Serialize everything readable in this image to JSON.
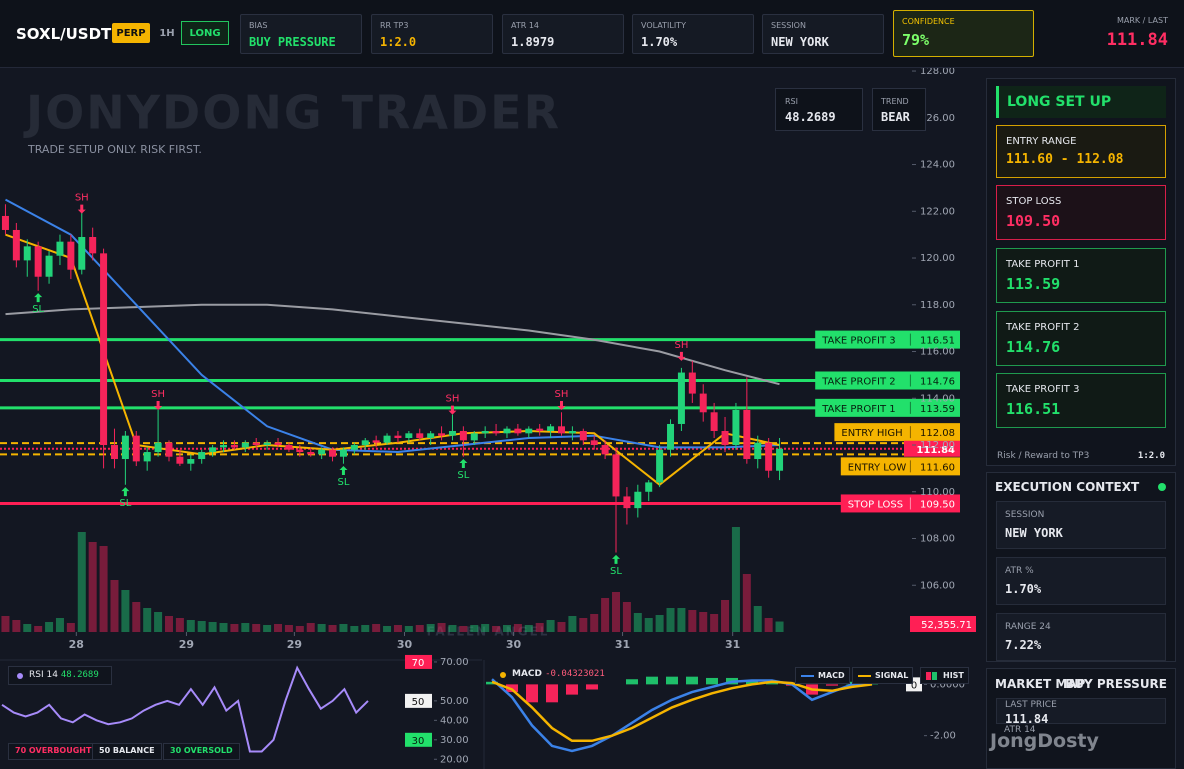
{
  "header": {
    "symbol": "SOXL/USDT",
    "badges": [
      "PERP",
      "1H",
      "LONG"
    ],
    "cards": [
      {
        "label": "BIAS",
        "value": "BUY PRESSURE"
      },
      {
        "label": "RR TP3",
        "value": "1:2.0"
      },
      {
        "label": "ATR 14",
        "value": "1.8979"
      },
      {
        "label": "VOLATILITY",
        "value": "1.70%"
      },
      {
        "label": "SESSION",
        "value": "NEW YORK"
      },
      {
        "label": "CONFIDENCE",
        "value": "79%"
      }
    ],
    "mark": {
      "label": "MARK / LAST",
      "value": "111.84"
    }
  },
  "indicators": [
    {
      "label": "RSI",
      "value": "48.2689"
    },
    {
      "label": "TREND",
      "value": "BEAR"
    }
  ],
  "setup": {
    "title": "LONG SET UP",
    "cards": [
      {
        "label": "ENTRY RANGE",
        "value": "111.60 - 112.08"
      },
      {
        "label": "STOP LOSS",
        "value": "109.50"
      },
      {
        "label": "TAKE PROFIT 1",
        "value": "113.59"
      },
      {
        "label": "TAKE PROFIT 2",
        "value": "114.76"
      },
      {
        "label": "TAKE PROFIT 3",
        "value": "116.51"
      }
    ],
    "footer": {
      "label": "Risk / Reward to TP3",
      "value": "1:2.0"
    }
  },
  "context": {
    "title": "EXECUTION CONTEXT",
    "cards": [
      {
        "label": "SESSION",
        "value": "NEW YORK"
      },
      {
        "label": "ATR %",
        "value": "1.70%"
      },
      {
        "label": "RANGE 24",
        "value": "7.22%"
      }
    ]
  },
  "market_map": {
    "title": "MARKET MAP",
    "value": "BUY PRESSURE",
    "cards": [
      {
        "label": "LAST PRICE",
        "value": "111.84"
      },
      {
        "label": "ATR 14"
      }
    ]
  },
  "watermark": "JongDosty",
  "chart_data": [
    {
      "type": "candlestick",
      "watermark": "JONYDONG TRADER",
      "subtitle": "TRADE SETUP ONLY. RISK FIRST.",
      "footer_watermark": "FALLEN ANGEL",
      "ylim": [
        104,
        128.13
      ],
      "yticks": [
        {
          "value": 128,
          "label": "128.00"
        },
        {
          "value": 126,
          "label": "126.00"
        },
        {
          "value": 124,
          "label": "124.00"
        },
        {
          "value": 122,
          "label": "122.00"
        },
        {
          "value": 120,
          "label": "120.00"
        },
        {
          "value": 118,
          "label": "118.00"
        },
        {
          "value": 116,
          "label": "116.00"
        },
        {
          "value": 114,
          "label": "114.00"
        },
        {
          "value": 112,
          "label": "112.00"
        },
        {
          "value": 110,
          "label": "110.00"
        },
        {
          "value": 108,
          "label": "108.00"
        },
        {
          "value": 106,
          "label": "106.00"
        }
      ],
      "xlim": [
        -0.5,
        71.5
      ],
      "xticks": [
        {
          "value": 6.5,
          "label": "28"
        },
        {
          "value": 16.6,
          "label": "29"
        },
        {
          "value": 26.5,
          "label": "29"
        },
        {
          "value": 36.6,
          "label": "30"
        },
        {
          "value": 46.6,
          "label": "30"
        },
        {
          "value": 56.6,
          "label": "31"
        },
        {
          "value": 66.7,
          "label": "31"
        }
      ],
      "up_color": "#22d37a",
      "down_color": "#f5245a",
      "open": [
        121.8,
        121.2,
        119.9,
        120.5,
        119.2,
        120.1,
        120.7,
        119.5,
        120.9,
        120.2,
        112.0,
        111.4,
        112.4,
        111.3,
        111.7,
        112.1,
        111.5,
        111.2,
        111.4,
        111.7,
        111.9,
        112.0,
        111.9,
        112.1,
        112.0,
        112.1,
        112.0,
        111.8,
        111.7,
        111.6,
        111.8,
        111.5,
        111.8,
        112.0,
        112.2,
        112.1,
        112.4,
        112.3,
        112.5,
        112.3,
        112.5,
        112.4,
        112.6,
        112.2,
        112.5,
        112.6,
        112.5,
        112.7,
        112.5,
        112.7,
        112.6,
        112.8,
        112.5,
        112.6,
        112.2,
        112.0,
        111.6,
        109.8,
        109.3,
        110.0,
        110.4,
        111.8,
        112.9,
        115.1,
        114.2,
        113.4,
        112.6,
        112.0,
        113.5,
        111.4,
        112.1,
        110.9
      ],
      "high": [
        122.3,
        121.5,
        120.8,
        120.7,
        120.3,
        121.0,
        121.0,
        122.0,
        121.3,
        120.4,
        112.7,
        112.6,
        112.6,
        111.9,
        113.5,
        112.2,
        111.8,
        111.6,
        111.8,
        112.0,
        112.2,
        112.2,
        112.2,
        112.3,
        112.2,
        112.3,
        112.1,
        112.0,
        111.9,
        111.9,
        111.9,
        111.9,
        112.1,
        112.3,
        112.4,
        112.5,
        112.6,
        112.6,
        112.7,
        112.6,
        112.8,
        113.3,
        112.8,
        112.6,
        112.8,
        112.9,
        112.8,
        112.9,
        112.8,
        112.9,
        112.9,
        113.4,
        112.8,
        112.7,
        112.4,
        112.2,
        111.9,
        110.2,
        110.3,
        110.5,
        112.0,
        113.1,
        115.3,
        115.6,
        114.6,
        113.8,
        113.2,
        113.8,
        114.9,
        112.4,
        112.3,
        112.3
      ],
      "low": [
        121.0,
        119.6,
        119.2,
        118.6,
        118.9,
        119.7,
        119.1,
        119.3,
        119.9,
        111.0,
        111.0,
        110.3,
        111.1,
        110.9,
        111.5,
        111.3,
        111.1,
        110.9,
        111.2,
        111.5,
        111.7,
        111.8,
        111.7,
        111.9,
        111.8,
        111.9,
        111.7,
        111.5,
        111.5,
        111.4,
        111.3,
        111.2,
        111.6,
        111.8,
        111.9,
        112.0,
        112.1,
        112.1,
        112.2,
        112.0,
        112.2,
        112.2,
        111.5,
        112.0,
        112.3,
        112.4,
        112.3,
        112.4,
        112.3,
        112.4,
        112.3,
        112.4,
        112.2,
        112.0,
        111.8,
        111.4,
        107.4,
        108.6,
        108.9,
        109.6,
        110.2,
        111.5,
        112.6,
        113.8,
        113.0,
        112.3,
        111.7,
        111.8,
        111.2,
        111.0,
        110.6,
        110.5
      ],
      "close": [
        121.2,
        119.9,
        120.5,
        119.2,
        120.1,
        120.7,
        119.5,
        120.9,
        120.2,
        112.0,
        111.4,
        112.4,
        111.3,
        111.7,
        112.1,
        111.5,
        111.2,
        111.4,
        111.7,
        111.9,
        112.0,
        111.9,
        112.1,
        112.0,
        112.1,
        112.0,
        111.8,
        111.7,
        111.6,
        111.8,
        111.5,
        111.8,
        112.0,
        112.2,
        112.1,
        112.4,
        112.3,
        112.5,
        112.3,
        112.5,
        112.4,
        112.6,
        112.2,
        112.5,
        112.6,
        112.5,
        112.7,
        112.5,
        112.7,
        112.6,
        112.8,
        112.5,
        112.6,
        112.2,
        112.0,
        111.6,
        109.8,
        109.3,
        110.0,
        110.4,
        111.8,
        112.9,
        115.1,
        114.2,
        113.4,
        112.6,
        112.0,
        113.5,
        111.4,
        112.1,
        110.9,
        111.84
      ],
      "volume": [
        80000,
        60000,
        40000,
        30000,
        50000,
        70000,
        45000,
        500000,
        450000,
        430000,
        260000,
        210000,
        150000,
        120000,
        100000,
        80000,
        70000,
        60000,
        55000,
        50000,
        45000,
        40000,
        45000,
        40000,
        35000,
        40000,
        35000,
        30000,
        45000,
        40000,
        35000,
        40000,
        30000,
        35000,
        40000,
        30000,
        35000,
        30000,
        35000,
        40000,
        45000,
        35000,
        30000,
        35000,
        40000,
        30000,
        35000,
        40000,
        35000,
        45000,
        60000,
        50000,
        80000,
        70000,
        90000,
        170000,
        200000,
        150000,
        95000,
        70000,
        85000,
        120000,
        120000,
        110000,
        100000,
        90000,
        160000,
        525000,
        290000,
        130000,
        70000,
        52355.71
      ],
      "volume_label": "52,355.71",
      "line_x": [
        0,
        6,
        12,
        18,
        24,
        30,
        36,
        42,
        48,
        54,
        60,
        66,
        71
      ],
      "lines": [
        {
          "color": "#9a9ca3",
          "values": [
            117.6,
            117.8,
            117.9,
            118.0,
            118.0,
            117.8,
            117.5,
            117.2,
            116.9,
            116.5,
            116.0,
            115.2,
            114.6
          ]
        },
        {
          "color": "#3b82e8",
          "values": [
            122.5,
            121.0,
            118.0,
            115.0,
            112.8,
            111.8,
            111.7,
            112.0,
            112.3,
            112.4,
            111.9,
            111.9,
            112.0
          ]
        },
        {
          "color": "#f5b400",
          "values": [
            121.0,
            120.0,
            112.0,
            111.6,
            112.0,
            111.8,
            112.1,
            112.5,
            112.6,
            112.5,
            110.3,
            112.5,
            112.0
          ]
        }
      ],
      "levels": [
        {
          "name": "TAKE PROFIT 3",
          "value": 116.51,
          "label": "116.51",
          "color": "#22e06b",
          "text_color": "#06200f",
          "style": "solid"
        },
        {
          "name": "TAKE PROFIT 2",
          "value": 114.76,
          "label": "114.76",
          "color": "#22e06b",
          "text_color": "#06200f",
          "style": "solid"
        },
        {
          "name": "TAKE PROFIT 1",
          "value": 113.59,
          "label": "113.59",
          "color": "#22e06b",
          "text_color": "#06200f",
          "style": "solid"
        },
        {
          "name": "ENTRY HIGH",
          "value": 112.08,
          "label": "112.08",
          "color": "#f5b400",
          "text_color": "#1a1300",
          "style": "dashed",
          "placement": "above"
        },
        {
          "value": 111.84,
          "label": "111.84",
          "color": "#ff1f55",
          "text_color": "#ffffff",
          "style": "dotted"
        },
        {
          "name": "ENTRY LOW",
          "value": 111.6,
          "label": "111.60",
          "color": "#f5b400",
          "text_color": "#1a1300",
          "style": "dashed",
          "placement": "below"
        },
        {
          "name": "STOP LOSS",
          "value": 109.5,
          "label": "109.50",
          "color": "#ff1f55",
          "text_color": "#ffffff",
          "style": "solid"
        }
      ],
      "markers": [
        {
          "label": "SH",
          "x": 7,
          "y": 121.9,
          "color": "#ff2e63",
          "dir": "down"
        },
        {
          "label": "SH",
          "x": 14,
          "y": 113.5,
          "color": "#ff2e63",
          "dir": "down"
        },
        {
          "label": "SH",
          "x": 41,
          "y": 113.3,
          "color": "#ff2e63",
          "dir": "down"
        },
        {
          "label": "SH",
          "x": 51,
          "y": 113.5,
          "color": "#ff2e63",
          "dir": "down"
        },
        {
          "label": "SH",
          "x": 62,
          "y": 115.6,
          "color": "#ff2e63",
          "dir": "down"
        },
        {
          "label": "SL",
          "x": 3,
          "y": 118.5,
          "color": "#22e06b",
          "dir": "up"
        },
        {
          "label": "SL",
          "x": 11,
          "y": 110.2,
          "color": "#22e06b",
          "dir": "up"
        },
        {
          "label": "SL",
          "x": 31,
          "y": 111.1,
          "color": "#22e06b",
          "dir": "up"
        },
        {
          "label": "SL",
          "x": 42,
          "y": 111.4,
          "color": "#22e06b",
          "dir": "up"
        },
        {
          "label": "SL",
          "x": 56,
          "y": 107.3,
          "color": "#22e06b",
          "dir": "up"
        }
      ]
    },
    {
      "type": "line",
      "title": "RSI 14",
      "value": "48.2689",
      "color": "#a78bfa",
      "ylim": [
        15,
        71
      ],
      "yticks": [
        {
          "value": 70,
          "label": "70.00"
        },
        {
          "value": 50,
          "label": "50.00"
        },
        {
          "value": 40,
          "label": "40.00"
        },
        {
          "value": 30,
          "label": "30.00"
        },
        {
          "value": 20,
          "label": "20.00"
        }
      ],
      "levels": [
        {
          "value": 70,
          "color": "#ff1f55",
          "text_color": "#ffffff"
        },
        {
          "value": 50,
          "color": "#f2f2f2",
          "text_color": "#111111"
        },
        {
          "value": 30,
          "color": "#22e06b",
          "text_color": "#06200f"
        }
      ],
      "legend": [
        "70 OVERBOUGHT",
        "50 BALANCE",
        "30 OVERSOLD"
      ],
      "values": [
        48,
        44,
        42,
        44,
        48,
        41,
        39,
        43,
        40,
        38,
        39,
        41,
        45,
        48,
        50,
        48,
        56,
        48,
        57,
        45,
        50,
        24,
        24,
        30,
        50,
        67,
        56,
        46,
        50,
        56,
        44,
        50
      ]
    },
    {
      "type": "macd",
      "title": "MACD",
      "value": "-0.04323021",
      "ylim": [
        -3.3,
        0.95
      ],
      "yticks": [
        {
          "value": 0,
          "label": "0.0000"
        },
        {
          "value": -2,
          "label": "-2.00"
        }
      ],
      "levels": [
        {
          "value": 0,
          "color": "#f2f2f2",
          "text_color": "#111111"
        }
      ],
      "series": [
        {
          "name": "MACD",
          "color": "#3b82e8",
          "values": [
            0.2,
            -0.5,
            -1.6,
            -2.4,
            -2.6,
            -2.4,
            -2.0,
            -1.5,
            -1.0,
            -0.6,
            -0.3,
            -0.1,
            0.1,
            0.15,
            0.15,
            0.0,
            -0.6,
            -0.3,
            0.0,
            0.05
          ]
        },
        {
          "name": "SIGNAL",
          "color": "#f5b400",
          "values": [
            0.1,
            -0.2,
            -0.9,
            -1.7,
            -2.2,
            -2.2,
            -2.0,
            -1.7,
            -1.3,
            -0.9,
            -0.6,
            -0.35,
            -0.15,
            0.0,
            0.1,
            0.05,
            -0.2,
            -0.25,
            -0.1,
            0.0
          ]
        }
      ],
      "hist": {
        "name": "HIST",
        "positive_color": "#1fbf6a",
        "negative_color": "#f5245a",
        "values": [
          0.1,
          -0.3,
          -0.7,
          -0.7,
          -0.4,
          -0.2,
          0.0,
          0.2,
          0.3,
          0.3,
          0.3,
          0.25,
          0.25,
          0.15,
          0.05,
          -0.05,
          -0.4,
          -0.05,
          0.1,
          0.05
        ]
      }
    }
  ]
}
